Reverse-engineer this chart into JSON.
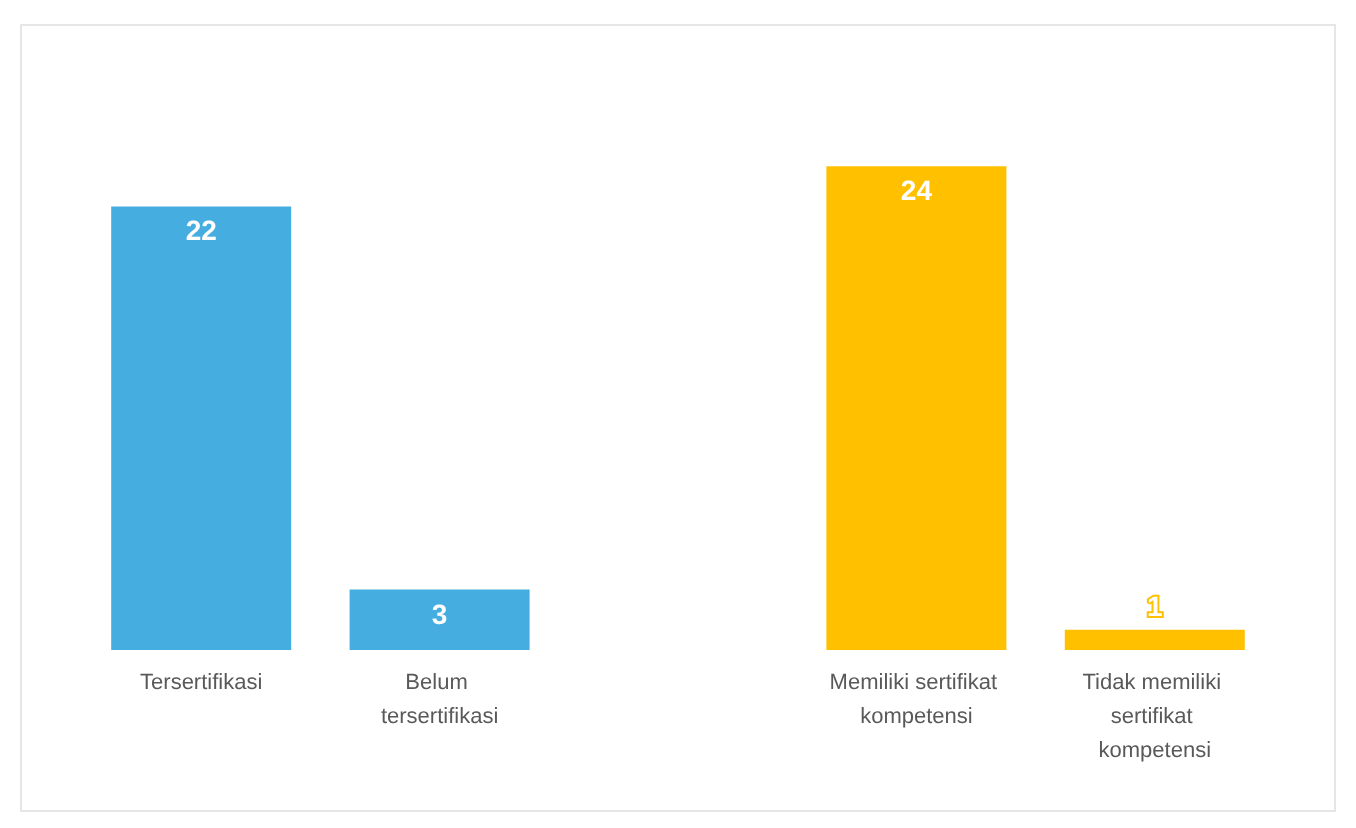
{
  "chart_data": {
    "type": "bar",
    "categories": [
      "Tersertifikasi",
      "Belum tersertifikasi",
      null,
      "Memiliki sertifikat kompetensi",
      "Tidak memiliki sertifikat kompetensi"
    ],
    "values": [
      22,
      3,
      null,
      24,
      1
    ],
    "colors": [
      "#45ade0",
      "#45ade0",
      null,
      "#ffc000",
      "#ffc000"
    ],
    "data_labels": true
  }
}
